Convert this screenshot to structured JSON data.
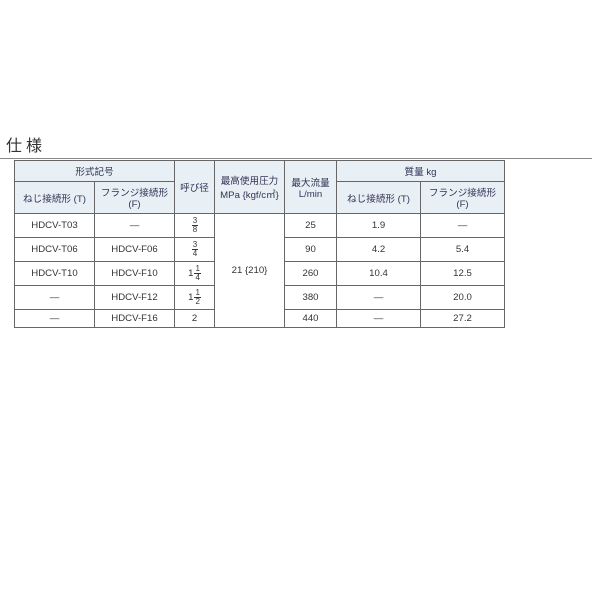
{
  "title": "仕様",
  "table": {
    "headers": {
      "model": "形式記号",
      "model_t": "ねじ接続形 (T)",
      "model_f": "フランジ接続形 (F)",
      "bore": "呼び径",
      "press": "最高使用圧力\nMPa {kgf/c㎡}",
      "flow": "最大流量\nL/min",
      "mass": "質量 kg",
      "mass_t": "ねじ接続形 (T)",
      "mass_f": "フランジ接続形 (F)"
    },
    "press_value": "21 {210}",
    "rows": [
      {
        "model_t": "HDCV-T03",
        "model_f": "—",
        "bore": {
          "w": "",
          "n": "3",
          "d": "8"
        },
        "flow": "25",
        "mass_t": "1.9",
        "mass_f": "—"
      },
      {
        "model_t": "HDCV-T06",
        "model_f": "HDCV-F06",
        "bore": {
          "w": "",
          "n": "3",
          "d": "4"
        },
        "flow": "90",
        "mass_t": "4.2",
        "mass_f": "5.4"
      },
      {
        "model_t": "HDCV-T10",
        "model_f": "HDCV-F10",
        "bore": {
          "w": "1",
          "n": "1",
          "d": "4"
        },
        "flow": "260",
        "mass_t": "10.4",
        "mass_f": "12.5"
      },
      {
        "model_t": "—",
        "model_f": "HDCV-F12",
        "bore": {
          "w": "1",
          "n": "1",
          "d": "2"
        },
        "flow": "380",
        "mass_t": "—",
        "mass_f": "20.0"
      },
      {
        "model_t": "—",
        "model_f": "HDCV-F16",
        "bore": {
          "w": "2",
          "n": "",
          "d": ""
        },
        "flow": "440",
        "mass_t": "—",
        "mass_f": "27.2"
      }
    ],
    "colors": {
      "header_bg": "#e8f0f5",
      "border": "#666666",
      "text": "#333333"
    }
  }
}
